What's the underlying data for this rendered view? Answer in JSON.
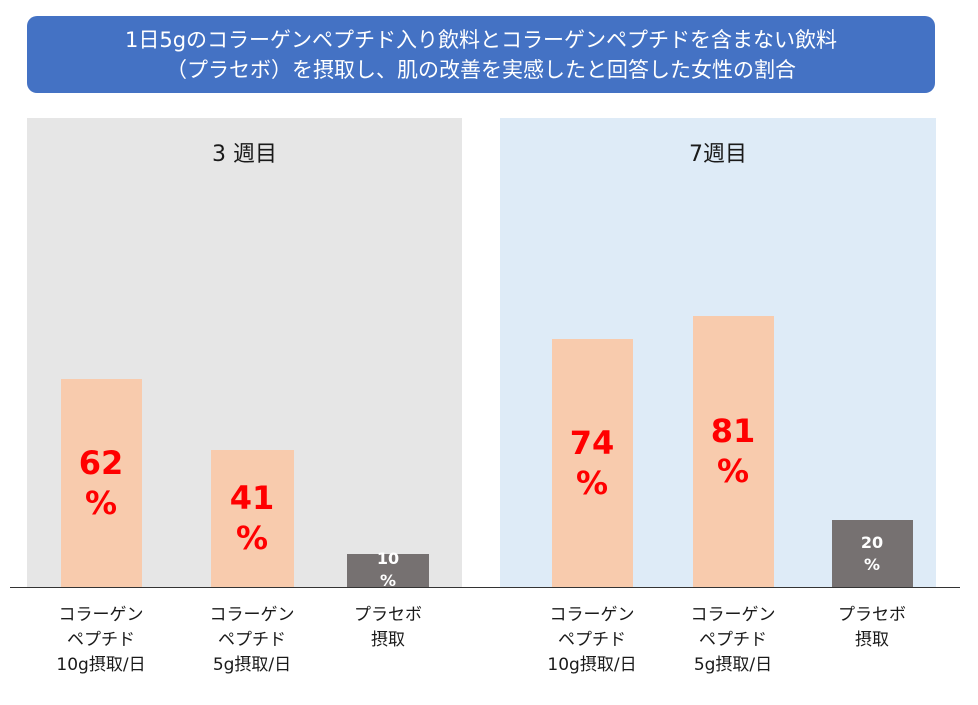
{
  "title": {
    "line1": "1日5gのコラーゲンペプチド入り飲料とコラーゲンペプチドを含まない飲料",
    "line2": "（プラセボ）を摂取し、肌の改善を実感したと回答した女性の割合"
  },
  "colors": {
    "title_bg": "#4472c4",
    "panel_week3_bg": "#e6e6e6",
    "panel_week7_bg": "#deebf7",
    "collagen_bar": "#f8cbad",
    "placebo_bar": "#767171",
    "highlight_text": "#ff0000"
  },
  "chart_data": {
    "type": "bar",
    "ylim": [
      0,
      100
    ],
    "groups": [
      {
        "label": "3 週目",
        "bars": [
          {
            "category": [
              "コラーゲン",
              "ペプチド",
              "10g摂取/日"
            ],
            "value": 62,
            "value_text": "62",
            "unit": "%"
          },
          {
            "category": [
              "コラーゲン",
              "ペプチド",
              "5g摂取/日"
            ],
            "value": 41,
            "value_text": "41",
            "unit": "%"
          },
          {
            "category": [
              "プラセボ",
              "摂取"
            ],
            "value": 10,
            "value_text": "10",
            "unit": "%"
          }
        ]
      },
      {
        "label": "7週目",
        "bars": [
          {
            "category": [
              "コラーゲン",
              "ペプチド",
              "10g摂取/日"
            ],
            "value": 74,
            "value_text": "74",
            "unit": "%"
          },
          {
            "category": [
              "コラーゲン",
              "ペプチド",
              "5g摂取/日"
            ],
            "value": 81,
            "value_text": "81",
            "unit": "%"
          },
          {
            "category": [
              "プラセボ",
              "摂取"
            ],
            "value": 20,
            "value_text": "20",
            "unit": "%"
          }
        ]
      }
    ]
  }
}
